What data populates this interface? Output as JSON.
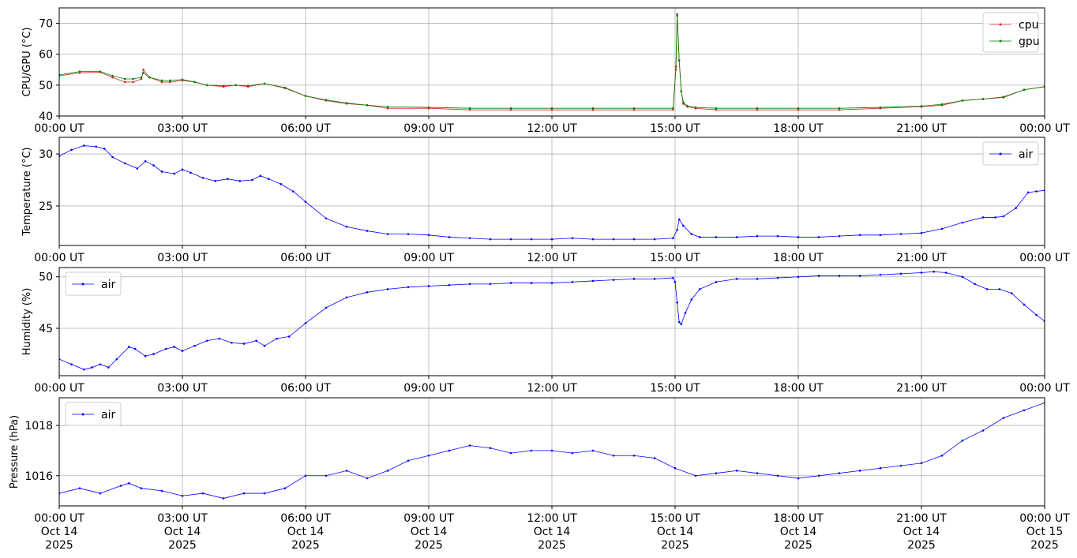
{
  "chart_data": [
    {
      "type": "line",
      "ylabel": "CPU/GPU (°C)",
      "ylim": [
        40,
        75
      ],
      "yticks": [
        40,
        50,
        60,
        70
      ],
      "grid": true,
      "legend_position": "top-right",
      "x_tick_labels": [
        "00:00 UT",
        "03:00 UT",
        "06:00 UT",
        "09:00 UT",
        "12:00 UT",
        "15:00 UT",
        "18:00 UT",
        "21:00 UT",
        "00:00 UT"
      ],
      "series": [
        {
          "name": "cpu",
          "color": "#d62728",
          "x_hours": [
            0,
            0.5,
            1.0,
            1.3,
            1.6,
            1.8,
            2.0,
            2.05,
            2.2,
            2.5,
            2.7,
            3.0,
            3.3,
            3.6,
            4.0,
            4.3,
            4.6,
            5.0,
            5.5,
            6.0,
            6.5,
            7.0,
            7.5,
            8.0,
            9.0,
            10.0,
            11.0,
            12.0,
            13.0,
            14.0,
            14.95,
            15.02,
            15.05,
            15.1,
            15.15,
            15.2,
            15.3,
            15.5,
            16.0,
            17.0,
            18.0,
            19.0,
            20.0,
            21.0,
            21.5,
            22.0,
            22.5,
            23.0,
            23.5,
            24.0
          ],
          "values": [
            53,
            54,
            54.2,
            52.5,
            51,
            51,
            52,
            55,
            52.5,
            51,
            51,
            51.5,
            51,
            50,
            49.5,
            50,
            49.5,
            50.5,
            49,
            46.5,
            45,
            44,
            43.5,
            42.5,
            42.5,
            42,
            42,
            42,
            42,
            42,
            42,
            55,
            73,
            58,
            48,
            44,
            43,
            42.5,
            42,
            42,
            42,
            42,
            42.5,
            43,
            43.5,
            45,
            45.5,
            46,
            48.5,
            49.5
          ]
        },
        {
          "name": "gpu",
          "color": "#008000",
          "x_hours": [
            0,
            0.5,
            1.0,
            1.3,
            1.6,
            1.8,
            2.0,
            2.05,
            2.2,
            2.5,
            2.7,
            3.0,
            3.3,
            3.6,
            4.0,
            4.3,
            4.6,
            5.0,
            5.5,
            6.0,
            6.5,
            7.0,
            7.5,
            8.0,
            9.0,
            10.0,
            11.0,
            12.0,
            13.0,
            14.0,
            14.95,
            15.02,
            15.05,
            15.1,
            15.15,
            15.2,
            15.3,
            15.5,
            16.0,
            17.0,
            18.0,
            19.0,
            20.0,
            21.0,
            21.5,
            22.0,
            22.5,
            23.0,
            23.5,
            24.0
          ],
          "values": [
            53.3,
            54.4,
            54.4,
            53,
            52,
            52,
            52.5,
            54,
            52.5,
            51.5,
            51.5,
            51.8,
            51,
            50,
            49.8,
            50,
            49.8,
            50.5,
            49.2,
            46.5,
            45.2,
            44.2,
            43.5,
            43,
            42.8,
            42.5,
            42.5,
            42.5,
            42.5,
            42.5,
            42.5,
            56,
            72.5,
            58,
            48,
            44.5,
            43.2,
            42.8,
            42.5,
            42.5,
            42.5,
            42.5,
            42.8,
            43.2,
            43.8,
            45,
            45.5,
            46.2,
            48.5,
            49.5
          ]
        }
      ]
    },
    {
      "type": "line",
      "ylabel": "Temperature (°C)",
      "ylim": [
        21.2,
        31.6
      ],
      "yticks": [
        25,
        30
      ],
      "grid": true,
      "legend_position": "top-right",
      "x_tick_labels": [
        "00:00 UT",
        "03:00 UT",
        "06:00 UT",
        "09:00 UT",
        "12:00 UT",
        "15:00 UT",
        "18:00 UT",
        "21:00 UT",
        "00:00 UT"
      ],
      "series": [
        {
          "name": "air",
          "color": "#0000ff",
          "x_hours": [
            0,
            0.3,
            0.6,
            0.9,
            1.1,
            1.3,
            1.6,
            1.9,
            2.1,
            2.3,
            2.5,
            2.8,
            3.0,
            3.2,
            3.5,
            3.8,
            4.1,
            4.4,
            4.7,
            4.9,
            5.1,
            5.4,
            5.7,
            6.0,
            6.5,
            7.0,
            7.5,
            8.0,
            8.5,
            9.0,
            9.5,
            10.0,
            10.5,
            11.0,
            11.5,
            12.0,
            12.5,
            13.0,
            13.5,
            14.0,
            14.5,
            14.95,
            15.05,
            15.1,
            15.2,
            15.4,
            15.6,
            16.0,
            16.5,
            17.0,
            17.5,
            18.0,
            18.5,
            19.0,
            19.5,
            20.0,
            20.5,
            21.0,
            21.5,
            22.0,
            22.5,
            22.8,
            23.0,
            23.3,
            23.6,
            23.8,
            24.0
          ],
          "values": [
            29.8,
            30.4,
            30.8,
            30.7,
            30.5,
            29.7,
            29.1,
            28.6,
            29.3,
            28.9,
            28.3,
            28.1,
            28.5,
            28.2,
            27.7,
            27.4,
            27.6,
            27.4,
            27.5,
            27.9,
            27.6,
            27.1,
            26.4,
            25.4,
            23.8,
            23.0,
            22.6,
            22.3,
            22.3,
            22.2,
            22.0,
            21.9,
            21.8,
            21.8,
            21.8,
            21.8,
            21.9,
            21.8,
            21.8,
            21.8,
            21.8,
            21.9,
            22.7,
            23.7,
            23.1,
            22.3,
            22.0,
            22.0,
            22.0,
            22.1,
            22.1,
            22.0,
            22.0,
            22.1,
            22.2,
            22.2,
            22.3,
            22.4,
            22.8,
            23.4,
            23.9,
            23.9,
            24.0,
            24.8,
            26.3,
            26.4,
            26.5
          ]
        }
      ]
    },
    {
      "type": "line",
      "ylabel": "Humidity (%)",
      "ylim": [
        40.4,
        50.9
      ],
      "yticks": [
        45,
        50
      ],
      "grid": true,
      "legend_position": "top-left",
      "x_tick_labels": [
        "00:00 UT",
        "03:00 UT",
        "06:00 UT",
        "09:00 UT",
        "12:00 UT",
        "15:00 UT",
        "18:00 UT",
        "21:00 UT",
        "00:00 UT"
      ],
      "series": [
        {
          "name": "air",
          "color": "#0000ff",
          "x_hours": [
            0,
            0.3,
            0.6,
            0.8,
            1.0,
            1.2,
            1.4,
            1.7,
            1.85,
            2.1,
            2.3,
            2.6,
            2.8,
            3.0,
            3.3,
            3.6,
            3.9,
            4.2,
            4.5,
            4.8,
            5.0,
            5.3,
            5.6,
            6.0,
            6.5,
            7.0,
            7.5,
            8.0,
            8.5,
            9.0,
            9.5,
            10.0,
            10.5,
            11.0,
            11.5,
            12.0,
            12.5,
            13.0,
            13.5,
            14.0,
            14.5,
            14.95,
            15.0,
            15.05,
            15.1,
            15.15,
            15.25,
            15.4,
            15.6,
            16.0,
            16.5,
            17.0,
            17.5,
            18.0,
            18.5,
            19.0,
            19.5,
            20.0,
            20.5,
            21.0,
            21.3,
            21.6,
            22.0,
            22.3,
            22.6,
            22.9,
            23.2,
            23.5,
            23.8,
            24.0
          ],
          "values": [
            42.0,
            41.5,
            41.0,
            41.2,
            41.5,
            41.2,
            42.0,
            43.2,
            43.0,
            42.3,
            42.5,
            43.0,
            43.2,
            42.8,
            43.3,
            43.8,
            44.0,
            43.6,
            43.5,
            43.8,
            43.3,
            44.0,
            44.2,
            45.5,
            47.0,
            48.0,
            48.5,
            48.8,
            49.0,
            49.1,
            49.2,
            49.3,
            49.3,
            49.4,
            49.4,
            49.4,
            49.5,
            49.6,
            49.7,
            49.8,
            49.8,
            49.9,
            49.5,
            47.5,
            45.6,
            45.4,
            46.5,
            47.8,
            48.8,
            49.5,
            49.8,
            49.8,
            49.9,
            50.0,
            50.1,
            50.1,
            50.1,
            50.2,
            50.3,
            50.4,
            50.5,
            50.4,
            50.0,
            49.3,
            48.8,
            48.8,
            48.4,
            47.3,
            46.3,
            45.7
          ]
        }
      ]
    },
    {
      "type": "line",
      "ylabel": "Pressure (hPa)",
      "ylim": [
        1014.8,
        1019.1
      ],
      "yticks": [
        1016,
        1018
      ],
      "grid": true,
      "legend_position": "top-left",
      "x_tick_labels": [
        "00:00 UT\nOct 14\n2025",
        "03:00 UT\nOct 14\n2025",
        "06:00 UT\nOct 14\n2025",
        "09:00 UT\nOct 14\n2025",
        "12:00 UT\nOct 14\n2025",
        "15:00 UT\nOct 14\n2025",
        "18:00 UT\nOct 14\n2025",
        "21:00 UT\nOct 14\n2025",
        "00:00 UT\nOct 15\n2025"
      ],
      "series": [
        {
          "name": "air",
          "color": "#0000ff",
          "x_hours": [
            0,
            0.5,
            1.0,
            1.5,
            1.7,
            2.0,
            2.5,
            3.0,
            3.5,
            4.0,
            4.5,
            5.0,
            5.5,
            6.0,
            6.5,
            7.0,
            7.5,
            8.0,
            8.5,
            9.0,
            9.5,
            10.0,
            10.5,
            11.0,
            11.5,
            12.0,
            12.5,
            13.0,
            13.5,
            14.0,
            14.5,
            15.0,
            15.5,
            16.0,
            16.5,
            17.0,
            17.5,
            18.0,
            18.5,
            19.0,
            19.5,
            20.0,
            20.5,
            21.0,
            21.5,
            22.0,
            22.5,
            23.0,
            23.5,
            24.0
          ],
          "values": [
            1015.3,
            1015.5,
            1015.3,
            1015.6,
            1015.7,
            1015.5,
            1015.4,
            1015.2,
            1015.3,
            1015.1,
            1015.3,
            1015.3,
            1015.5,
            1016.0,
            1016.0,
            1016.2,
            1015.9,
            1016.2,
            1016.6,
            1016.8,
            1017.0,
            1017.2,
            1017.1,
            1016.9,
            1017.0,
            1017.0,
            1016.9,
            1017.0,
            1016.8,
            1016.8,
            1016.7,
            1016.3,
            1016.0,
            1016.1,
            1016.2,
            1016.1,
            1016.0,
            1015.9,
            1016.0,
            1016.1,
            1016.2,
            1016.3,
            1016.4,
            1016.5,
            1016.8,
            1017.4,
            1017.8,
            1018.3,
            1018.6,
            1018.9
          ]
        }
      ]
    }
  ]
}
